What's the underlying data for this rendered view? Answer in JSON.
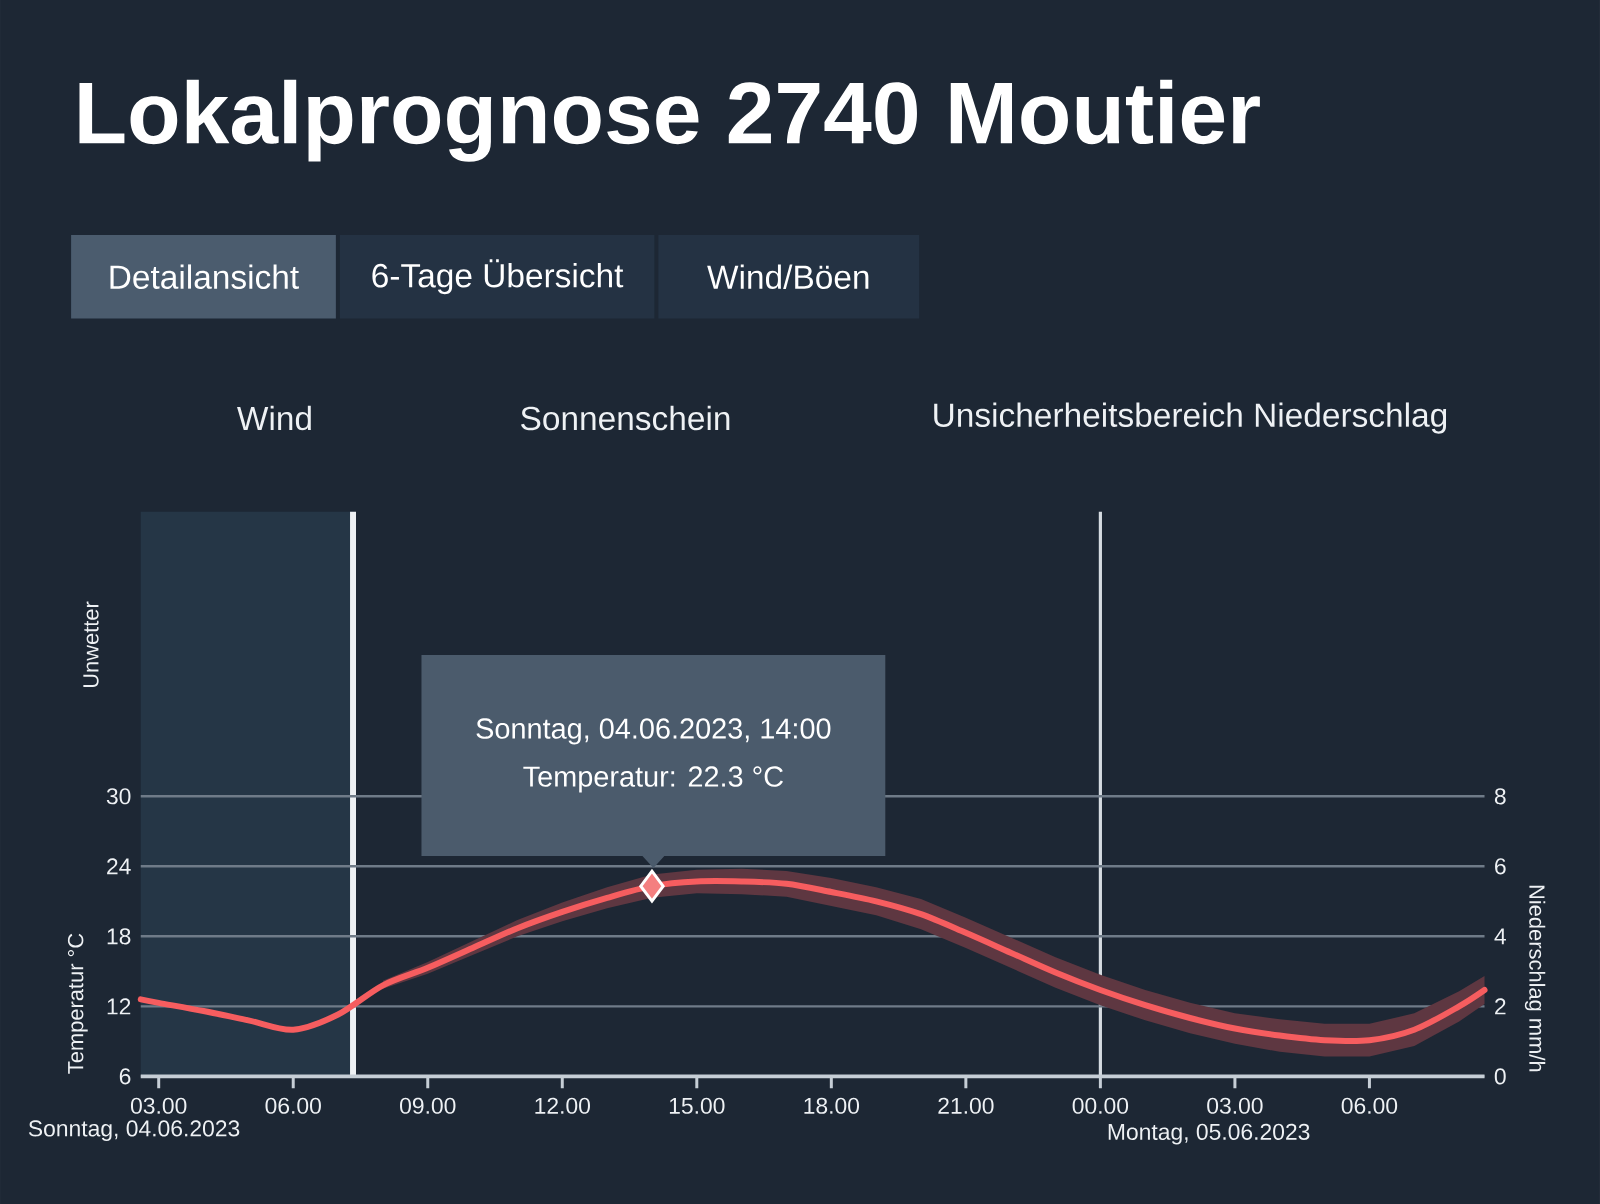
{
  "chart_data": {
    "type": "line",
    "title": "Lokalprognose 2740 Moutier",
    "ylabel": "Temperatur °C",
    "y2label": "Niederschlag mm/h",
    "annotations": [
      "Detailansicht",
      "6-Tage Übersicht",
      "Wind/Böen",
      "Wind",
      "Sonnenschein",
      "Unsicherheitsbereich Niederschlag",
      "Unwetter",
      "Sonntag, 04.06.2023",
      "Sonntag, 04.06.2023, 14:00",
      "Temperatur: 22.3 °C"
    ],
    "series": [
      {
        "color": "#f65d5f",
        "x": [
          "2023-06-04T02:36",
          "2023-06-04T03:00",
          "2023-06-04T04:00",
          "2023-06-04T05:00",
          "2023-06-04T06:00",
          "2023-06-04T07:00",
          "2023-06-04T08:00",
          "2023-06-04T09:00",
          "2023-06-04T10:00",
          "2023-06-04T11:00",
          "2023-06-04T12:00",
          "2023-06-04T13:00",
          "2023-06-04T14:00",
          "2023-06-04T15:00",
          "2023-06-04T16:00",
          "2023-06-04T17:00",
          "2023-06-04T18:00",
          "2023-06-04T19:00",
          "2023-06-04T20:00",
          "2023-06-04T21:00",
          "2023-06-04T22:00",
          "2023-06-04T23:00",
          "2023-06-05T00:00",
          "2023-06-05T01:00",
          "2023-06-05T02:00",
          "2023-06-05T03:00",
          "2023-06-05T04:00",
          "2023-06-05T05:00",
          "2023-06-05T06:00",
          "2023-06-05T07:00",
          "2023-06-05T08:00",
          "2023-06-05T08:34"
        ],
        "values": [
          12.6,
          12.3,
          11.6,
          10.8,
          10.0,
          11.3,
          13.8,
          15.3,
          17.0,
          18.7,
          20.1,
          21.3,
          22.3,
          22.7,
          22.7,
          22.5,
          21.8,
          21.0,
          19.9,
          18.3,
          16.6,
          14.9,
          13.4,
          12.1,
          11.0,
          10.1,
          9.5,
          9.1,
          9.1,
          10.0,
          12.0,
          13.4
        ],
        "lower": [
          null,
          null,
          null,
          null,
          null,
          null,
          13.5,
          14.8,
          16.4,
          18.0,
          19.3,
          20.4,
          21.3,
          21.7,
          21.6,
          21.4,
          20.6,
          19.8,
          18.6,
          17.0,
          15.3,
          13.6,
          12.1,
          10.8,
          9.7,
          8.8,
          8.1,
          7.7,
          7.7,
          8.6,
          10.7,
          12.2
        ],
        "upper": [
          null,
          null,
          null,
          null,
          null,
          null,
          14.2,
          15.8,
          17.6,
          19.4,
          20.9,
          22.2,
          23.3,
          23.7,
          23.8,
          23.6,
          23.0,
          22.2,
          21.2,
          19.6,
          17.9,
          16.2,
          14.7,
          13.4,
          12.3,
          11.4,
          10.9,
          10.5,
          10.5,
          11.4,
          13.3,
          14.6
        ]
      },
      {
        "type": "scatter",
        "marker": "diamond",
        "color": "#f47f80",
        "x": [
          "2023-06-04T14:00"
        ],
        "values": [
          22.3
        ]
      }
    ],
    "xlim": [
      "2023-06-04T02:36",
      "2023-06-05T08:34"
    ],
    "xticks": [
      {
        "value": "2023-06-04T03:00",
        "label": "03.00"
      },
      {
        "value": "2023-06-04T06:00",
        "label": "06.00"
      },
      {
        "value": "2023-06-04T09:00",
        "label": "09.00"
      },
      {
        "value": "2023-06-04T12:00",
        "label": "12.00"
      },
      {
        "value": "2023-06-04T15:00",
        "label": "15.00"
      },
      {
        "value": "2023-06-04T18:00",
        "label": "18.00"
      },
      {
        "value": "2023-06-04T21:00",
        "label": "21.00"
      },
      {
        "value": "2023-06-05T00:00",
        "label": "00.00"
      },
      {
        "value": "2023-06-05T03:00",
        "label": "03.00"
      },
      {
        "value": "2023-06-05T06:00",
        "label": "06.00"
      }
    ],
    "ylim": [
      6,
      30
    ],
    "yticks": [
      6,
      12,
      18,
      24,
      30
    ],
    "y2lim": [
      0,
      8
    ],
    "y2ticks": [
      0,
      2,
      4,
      6,
      8
    ],
    "grid": "y",
    "bands": [
      {
        "axis": "x",
        "from": "2023-06-04T02:36",
        "to": "2023-06-04T07:20",
        "color": "#253646"
      }
    ],
    "ref_lines": [
      {
        "axis": "x",
        "value": "2023-06-04T07:20",
        "color": "#eef1f4"
      },
      {
        "axis": "x",
        "value": "2023-06-05T00:00",
        "label": "Montag, 05.06.2023",
        "color": "#d5dbe1"
      }
    ]
  }
}
